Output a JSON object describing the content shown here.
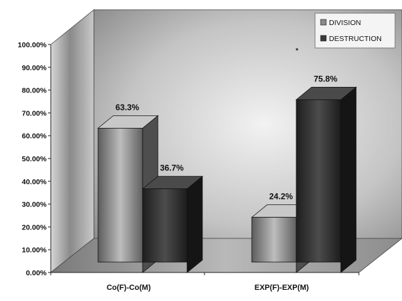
{
  "chart_data": {
    "type": "bar",
    "categories": [
      "Co(F)-Co(M)",
      "EXP(F)-EXP(M)"
    ],
    "series": [
      {
        "name": "DIVISION",
        "values": [
          63.3,
          24.2
        ],
        "color": "#8a8a8a"
      },
      {
        "name": "DESTRUCTION",
        "values": [
          36.7,
          75.8
        ],
        "color": "#3a3a3a"
      }
    ],
    "data_labels": [
      [
        "63.3%",
        "36.7%"
      ],
      [
        "24.2%",
        "75.8%"
      ]
    ],
    "y_ticks": [
      "0.00%",
      "10.00%",
      "20.00%",
      "30.00%",
      "40.00%",
      "50.00%",
      "60.00%",
      "70.00%",
      "80.00%",
      "90.00%",
      "100.00%"
    ],
    "ylim": [
      0,
      100
    ],
    "title": "",
    "xlabel": "",
    "ylabel": "",
    "legend_position": "top-right",
    "three_d": true
  }
}
